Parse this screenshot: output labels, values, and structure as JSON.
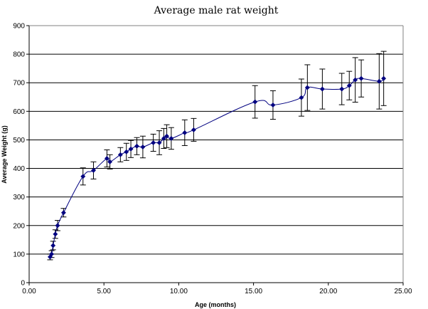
{
  "chart_data": {
    "type": "line",
    "title": "Average male rat weight",
    "xlabel": "Age (months)",
    "ylabel": "Average Weight (g)",
    "xlim": [
      0,
      25
    ],
    "ylim": [
      0,
      900
    ],
    "x_ticks": [
      0,
      5,
      10,
      15,
      20,
      25
    ],
    "x_tick_labels": [
      "0.00",
      "5.00",
      "10.00",
      "15.00",
      "20.00",
      "25.00"
    ],
    "y_ticks": [
      0,
      100,
      200,
      300,
      400,
      500,
      600,
      700,
      800,
      900
    ],
    "y_tick_labels": [
      "0",
      "100",
      "200",
      "300",
      "400",
      "500",
      "600",
      "700",
      "800",
      "900"
    ],
    "grid": "horizontal",
    "legend": "none",
    "colors": {
      "line": "#000080",
      "marker": "#000080",
      "error_bar": "#000000",
      "grid": "#000000"
    },
    "series": [
      {
        "x": [
          1.4,
          1.5,
          1.6,
          1.75,
          1.9,
          2.3,
          3.6,
          4.3,
          5.2,
          5.4,
          6.1,
          6.5,
          6.8,
          7.2,
          7.6,
          8.3,
          8.7,
          9.0,
          9.2,
          9.5,
          10.4,
          11.0,
          15.1,
          16.3,
          18.2,
          18.6,
          19.6,
          20.9,
          21.4,
          21.8,
          22.2,
          23.4,
          23.7
        ],
        "y": [
          90,
          100,
          130,
          170,
          200,
          245,
          372,
          393,
          435,
          423,
          448,
          458,
          468,
          478,
          475,
          490,
          490,
          505,
          513,
          505,
          525,
          535,
          633,
          622,
          648,
          683,
          678,
          678,
          690,
          710,
          715,
          705,
          715
        ],
        "err": [
          10,
          12,
          15,
          15,
          18,
          15,
          30,
          30,
          30,
          25,
          25,
          30,
          30,
          30,
          38,
          30,
          42,
          35,
          40,
          38,
          45,
          40,
          57,
          50,
          65,
          80,
          70,
          55,
          50,
          78,
          65,
          97,
          95
        ]
      }
    ]
  }
}
